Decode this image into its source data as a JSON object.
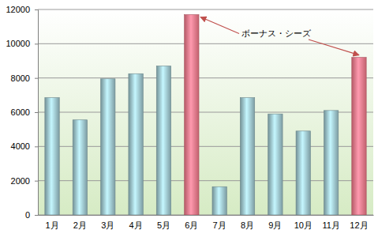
{
  "chart_data": {
    "type": "bar",
    "categories": [
      "1月",
      "2月",
      "3月",
      "4月",
      "5月",
      "6月",
      "7月",
      "8月",
      "9月",
      "10月",
      "11月",
      "12月"
    ],
    "values": [
      6850,
      5550,
      7950,
      8250,
      8700,
      11700,
      1650,
      6850,
      5900,
      4900,
      6100,
      9200
    ],
    "colors": [
      "#8fb3ba",
      "#8fb3ba",
      "#8fb3ba",
      "#8fb3ba",
      "#8fb3ba",
      "#e0707f",
      "#8fb3ba",
      "#8fb3ba",
      "#8fb3ba",
      "#8fb3ba",
      "#8fb3ba",
      "#e0707f"
    ],
    "ylim": [
      0,
      12000
    ],
    "yticks": [
      0,
      2000,
      4000,
      6000,
      8000,
      10000,
      12000
    ],
    "grid": true,
    "annotations": [
      {
        "text": "ボーナス・シーズ"
      }
    ]
  }
}
